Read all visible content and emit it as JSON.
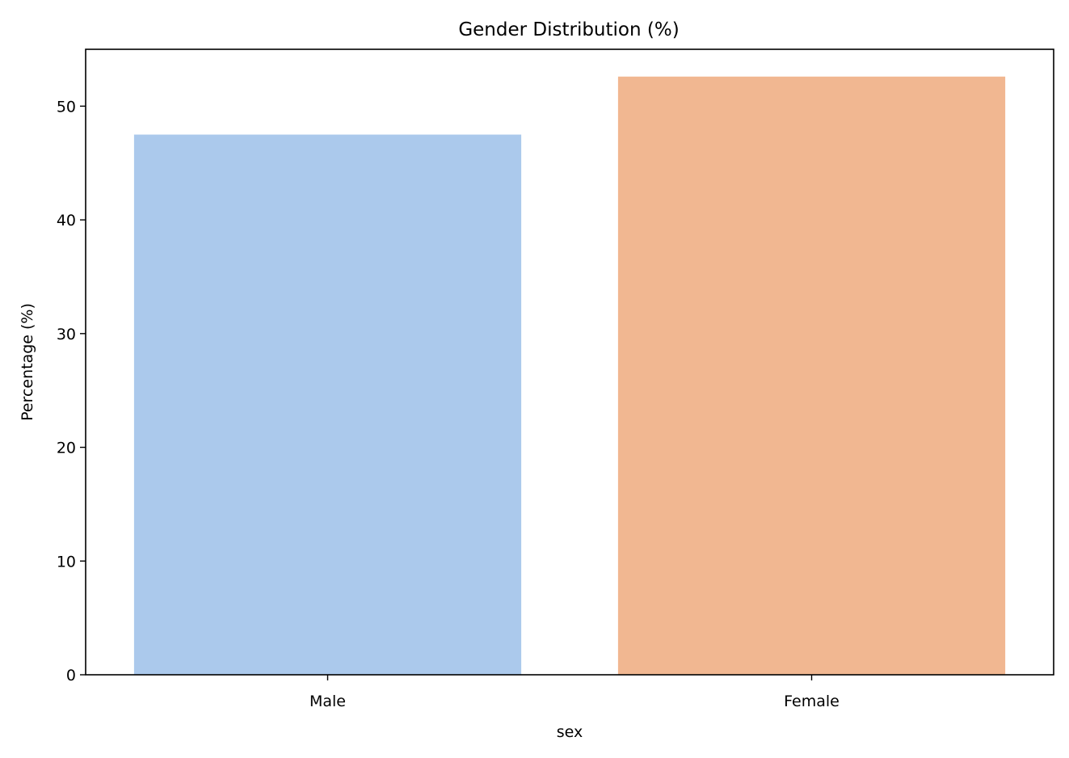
{
  "chart_data": {
    "type": "bar",
    "title": "Gender Distribution (%)",
    "xlabel": "sex",
    "ylabel": "Percentage (%)",
    "categories": [
      "Male",
      "Female"
    ],
    "values": [
      47.5,
      52.6
    ],
    "colors": [
      "#abc9ec",
      "#f1b791"
    ],
    "ylim": [
      0,
      55
    ],
    "yticks": [
      0,
      10,
      20,
      30,
      40,
      50
    ],
    "grid": false,
    "legend": "none"
  }
}
